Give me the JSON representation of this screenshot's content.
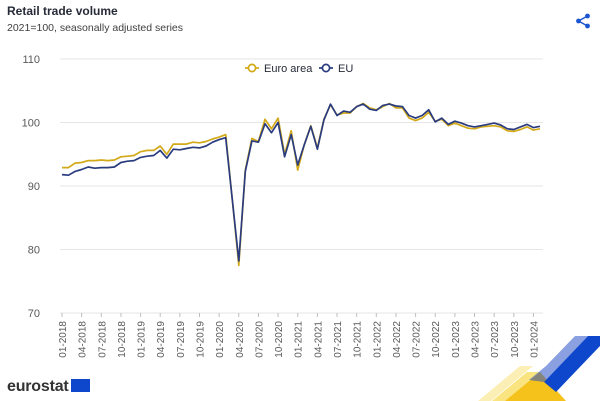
{
  "header": {
    "title": "Retail trade volume",
    "subtitle": "2021=100, seasonally adjusted series"
  },
  "branding": {
    "logo_text": "eurostat"
  },
  "icons": {
    "share": "share-icon"
  },
  "colors": {
    "euro_area": "#d2a918",
    "eu": "#2a3c7f",
    "grid": "#e6e6e6",
    "accent_blue": "#1b55d0",
    "accent_yellow": "#f7d22b"
  },
  "chart_data": {
    "type": "line",
    "title": "Retail trade volume",
    "subtitle": "2021=100, seasonally adjusted series",
    "xlabel": "",
    "ylabel": "",
    "ylim": [
      70,
      110
    ],
    "yticks": [
      70,
      80,
      90,
      100,
      110
    ],
    "grid": true,
    "legend": "top-center",
    "x_tick_labels": [
      "01-2018",
      "04-2018",
      "07-2018",
      "10-2018",
      "01-2019",
      "04-2019",
      "07-2019",
      "10-2019",
      "01-2020",
      "04-2020",
      "07-2020",
      "10-2020",
      "01-2021",
      "04-2021",
      "07-2021",
      "10-2021",
      "01-2022",
      "04-2022",
      "07-2022",
      "10-2022",
      "01-2023",
      "04-2023",
      "07-2023",
      "10-2023",
      "01-2024"
    ],
    "series": [
      {
        "name": "Euro area",
        "values": [
          92.9,
          92.9,
          93.6,
          93.7,
          94.0,
          94.0,
          94.1,
          94.0,
          94.1,
          94.6,
          94.7,
          94.8,
          95.4,
          95.6,
          95.6,
          96.3,
          95.0,
          96.6,
          96.6,
          96.6,
          96.9,
          96.8,
          97.0,
          97.4,
          97.7,
          98.1,
          88.0,
          77.5,
          92.5,
          97.5,
          97.0,
          100.5,
          99.0,
          100.7,
          95.0,
          98.7,
          92.5,
          96.5,
          99.5,
          96.0,
          100.5,
          102.8,
          101.2,
          101.5,
          101.5,
          102.5,
          103.0,
          102.3,
          102.0,
          102.5,
          103.0,
          102.3,
          102.3,
          100.7,
          100.3,
          100.7,
          101.6,
          100.2,
          100.5,
          99.5,
          99.9,
          99.5,
          99.1,
          99.0,
          99.3,
          99.4,
          99.5,
          99.3,
          98.7,
          98.6,
          98.9,
          99.3,
          98.8,
          99.0
        ]
      },
      {
        "name": "EU",
        "values": [
          91.8,
          91.7,
          92.3,
          92.6,
          93.0,
          92.8,
          92.9,
          92.9,
          93.0,
          93.7,
          93.9,
          94.0,
          94.5,
          94.7,
          94.8,
          95.6,
          94.4,
          95.8,
          95.7,
          95.9,
          96.1,
          96.0,
          96.3,
          96.9,
          97.3,
          97.6,
          88.0,
          78.2,
          92.3,
          97.1,
          96.9,
          99.8,
          98.4,
          100.0,
          94.6,
          98.1,
          93.3,
          96.5,
          99.4,
          95.8,
          100.4,
          102.9,
          101.1,
          101.8,
          101.6,
          102.5,
          102.9,
          102.1,
          101.9,
          102.7,
          102.9,
          102.6,
          102.5,
          101.1,
          100.7,
          101.1,
          102.0,
          100.1,
          100.7,
          99.7,
          100.2,
          99.9,
          99.5,
          99.3,
          99.5,
          99.7,
          99.9,
          99.6,
          99.0,
          98.9,
          99.3,
          99.7,
          99.2,
          99.4
        ]
      }
    ]
  }
}
